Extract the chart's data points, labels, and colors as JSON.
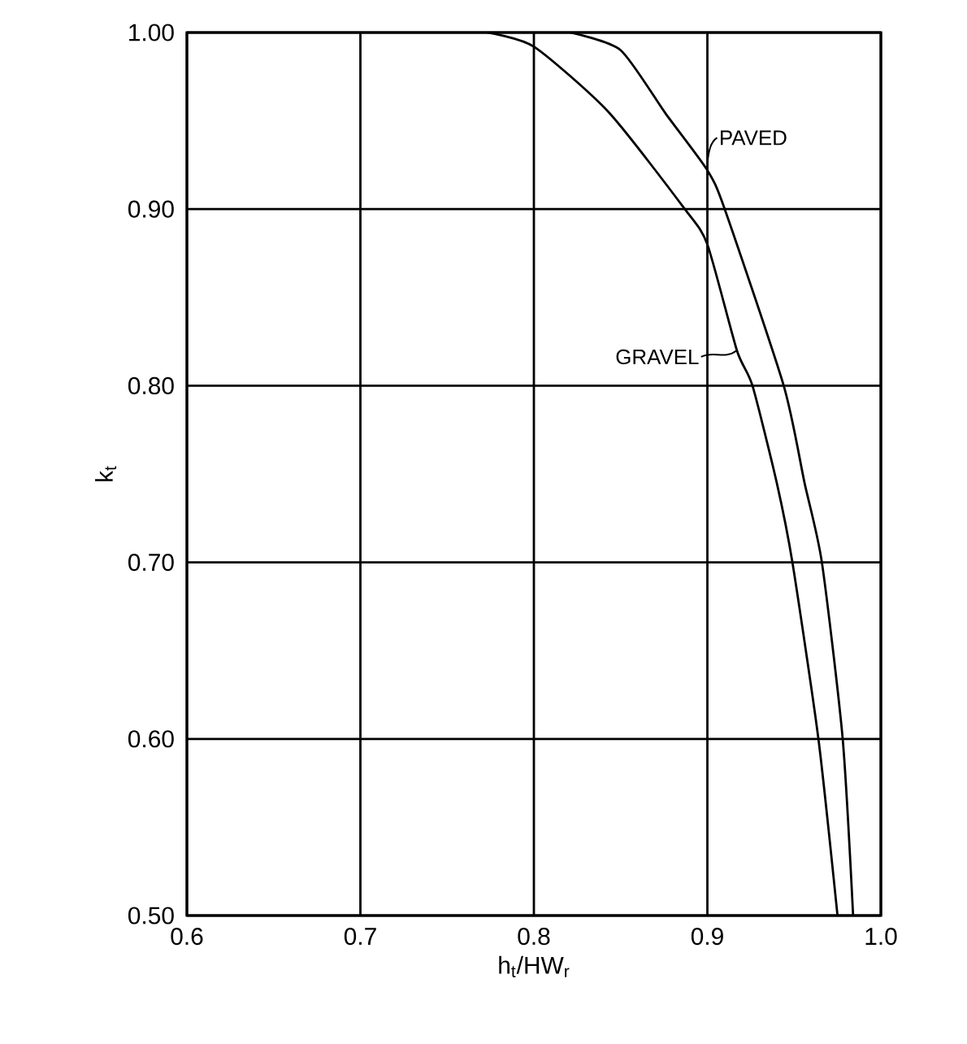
{
  "chart_data": {
    "type": "line",
    "xlabel": "h$_{t}$/HW$_{r}$",
    "ylabel": "k$_{t}$",
    "xlim": [
      0.6,
      1.0
    ],
    "ylim": [
      0.5,
      1.0
    ],
    "xticks": [
      {
        "value": 0.6,
        "label": "0.6"
      },
      {
        "value": 0.7,
        "label": "0.7"
      },
      {
        "value": 0.8,
        "label": "0.8"
      },
      {
        "value": 0.9,
        "label": "0.9"
      },
      {
        "value": 1.0,
        "label": "1.0"
      }
    ],
    "yticks": [
      {
        "value": 0.5,
        "label": "0.50"
      },
      {
        "value": 0.6,
        "label": "0.60"
      },
      {
        "value": 0.7,
        "label": "0.70"
      },
      {
        "value": 0.8,
        "label": "0.80"
      },
      {
        "value": 0.9,
        "label": "0.90"
      },
      {
        "value": 1.0,
        "label": "1.00"
      }
    ],
    "grid": true,
    "series": [
      {
        "color": "#000000",
        "x": [
          0.773,
          0.8,
          0.843,
          0.887,
          0.9,
          0.917,
          0.926,
          0.94,
          0.949,
          0.964,
          0.975
        ],
        "values": [
          1.0,
          0.992,
          0.955,
          0.9,
          0.88,
          0.82,
          0.8,
          0.745,
          0.7,
          0.6,
          0.5
        ]
      },
      {
        "color": "#000000",
        "x": [
          0.821,
          0.85,
          0.876,
          0.9,
          0.91,
          0.944,
          0.956,
          0.966,
          0.978,
          0.984
        ],
        "values": [
          1.0,
          0.99,
          0.954,
          0.922,
          0.9,
          0.8,
          0.745,
          0.7,
          0.6,
          0.5
        ]
      }
    ],
    "annotations": [
      {
        "text": "PAVED",
        "x": 0.9,
        "y": 0.922
      },
      {
        "text": "GRAVEL",
        "x": 0.917,
        "y": 0.82
      }
    ]
  }
}
